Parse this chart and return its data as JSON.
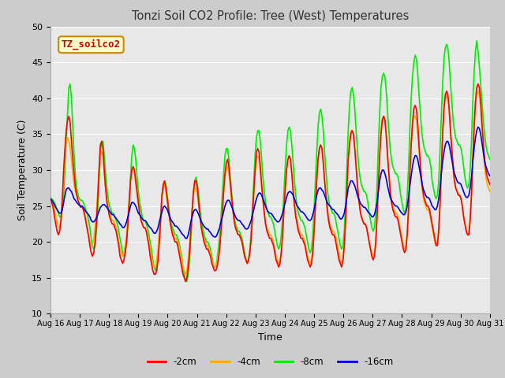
{
  "title": "Tonzi Soil CO2 Profile: Tree (West) Temperatures",
  "xlabel": "Time",
  "ylabel": "Soil Temperature (C)",
  "ylim": [
    10,
    50
  ],
  "yticks": [
    10,
    15,
    20,
    25,
    30,
    35,
    40,
    45,
    50
  ],
  "xtick_labels": [
    "Aug 16",
    "Aug 17",
    "Aug 18",
    "Aug 19",
    "Aug 20",
    "Aug 21",
    "Aug 22",
    "Aug 23",
    "Aug 24",
    "Aug 25",
    "Aug 26",
    "Aug 27",
    "Aug 28",
    "Aug 29",
    "Aug 30",
    "Aug 31"
  ],
  "legend_labels": [
    "-2cm",
    "-4cm",
    "-8cm",
    "-16cm"
  ],
  "legend_colors": [
    "#ff0000",
    "#ffaa00",
    "#00ee00",
    "#0000dd"
  ],
  "background_color": "#cccccc",
  "plot_bg_color": "#e8e8e8",
  "annotation_text": "TZ_soilco2",
  "annotation_bg": "#ffffcc",
  "annotation_border": "#cc8800",
  "annotation_text_color": "#cc0000",
  "grid_color": "#ffffff",
  "series_2cm": [
    26.0,
    25.5,
    24.8,
    23.5,
    22.5,
    21.5,
    21.0,
    21.5,
    23.0,
    26.0,
    30.0,
    33.0,
    35.5,
    37.0,
    37.5,
    36.5,
    34.0,
    31.5,
    29.5,
    27.5,
    26.5,
    25.8,
    25.2,
    24.8,
    25.0,
    24.5,
    23.8,
    22.8,
    21.8,
    20.8,
    19.5,
    18.5,
    18.0,
    18.5,
    20.0,
    22.5,
    26.0,
    30.0,
    33.5,
    34.0,
    33.0,
    30.0,
    27.5,
    25.5,
    24.5,
    23.5,
    23.0,
    22.5,
    22.5,
    22.0,
    21.5,
    20.5,
    19.5,
    18.0,
    17.5,
    17.0,
    17.5,
    18.5,
    20.0,
    22.5,
    25.5,
    28.5,
    30.0,
    30.5,
    30.0,
    28.5,
    27.0,
    25.5,
    24.0,
    23.0,
    22.5,
    22.0,
    22.0,
    21.5,
    20.5,
    19.5,
    18.0,
    17.0,
    16.0,
    15.5,
    15.5,
    16.0,
    17.5,
    20.0,
    23.0,
    26.5,
    28.0,
    28.5,
    27.5,
    26.0,
    24.5,
    23.0,
    22.0,
    21.0,
    20.5,
    20.0,
    20.0,
    19.5,
    18.5,
    17.5,
    16.5,
    15.5,
    15.0,
    14.5,
    15.0,
    16.5,
    18.5,
    21.5,
    24.5,
    27.0,
    28.5,
    28.5,
    27.5,
    25.5,
    23.5,
    22.0,
    21.0,
    20.0,
    19.5,
    19.0,
    19.0,
    18.5,
    18.0,
    17.0,
    16.5,
    16.0,
    16.0,
    16.5,
    17.5,
    19.0,
    21.5,
    24.0,
    27.0,
    29.5,
    31.0,
    31.5,
    30.5,
    28.5,
    26.5,
    24.5,
    23.0,
    22.0,
    21.5,
    21.0,
    21.0,
    20.5,
    20.0,
    19.0,
    18.0,
    17.5,
    17.0,
    17.5,
    18.5,
    20.5,
    23.5,
    27.0,
    30.0,
    32.5,
    33.0,
    32.5,
    30.5,
    28.0,
    26.0,
    24.0,
    22.5,
    21.5,
    21.0,
    20.5,
    20.5,
    20.0,
    19.5,
    18.5,
    17.5,
    17.0,
    16.5,
    17.0,
    18.5,
    21.0,
    24.5,
    27.5,
    30.0,
    31.5,
    32.0,
    31.5,
    29.5,
    27.0,
    25.0,
    23.5,
    22.5,
    21.5,
    21.0,
    20.5,
    20.5,
    20.0,
    19.5,
    18.5,
    17.5,
    17.0,
    16.5,
    17.0,
    18.5,
    21.5,
    25.0,
    28.5,
    31.5,
    33.0,
    33.5,
    33.0,
    31.0,
    28.5,
    26.5,
    24.5,
    23.0,
    22.0,
    21.5,
    21.0,
    21.0,
    20.5,
    19.5,
    18.5,
    17.5,
    17.0,
    16.5,
    17.5,
    19.5,
    23.0,
    27.5,
    31.5,
    33.5,
    35.0,
    35.5,
    35.0,
    33.0,
    30.5,
    28.0,
    26.0,
    24.5,
    23.5,
    23.0,
    22.5,
    22.5,
    22.0,
    21.0,
    20.0,
    19.0,
    18.0,
    17.5,
    18.0,
    20.0,
    23.5,
    28.0,
    32.0,
    35.0,
    37.0,
    37.5,
    37.0,
    35.0,
    32.0,
    29.5,
    27.0,
    25.5,
    24.5,
    24.0,
    23.5,
    23.5,
    23.0,
    22.0,
    21.0,
    20.0,
    19.0,
    18.5,
    19.0,
    21.0,
    24.5,
    29.5,
    33.5,
    36.5,
    38.5,
    39.0,
    38.5,
    36.5,
    33.5,
    31.0,
    28.5,
    27.0,
    26.0,
    25.5,
    25.0,
    25.0,
    24.5,
    23.5,
    22.5,
    21.5,
    20.5,
    19.5,
    19.5,
    21.5,
    25.0,
    30.0,
    35.0,
    38.5,
    40.5,
    41.0,
    40.5,
    38.5,
    35.5,
    33.0,
    30.5,
    28.5,
    27.5,
    27.0,
    26.5,
    26.5,
    26.0,
    25.0,
    23.5,
    22.5,
    21.5,
    21.0,
    21.0,
    23.0,
    26.5,
    31.5,
    36.0,
    39.5,
    41.5,
    42.0,
    41.5,
    39.5,
    36.5,
    34.0,
    31.5,
    30.0,
    29.0,
    28.5,
    28.0
  ],
  "series_4cm": [
    26.0,
    25.8,
    25.3,
    24.5,
    23.5,
    22.8,
    22.0,
    22.0,
    23.0,
    25.5,
    28.5,
    32.0,
    34.0,
    34.5,
    34.0,
    33.0,
    31.5,
    29.5,
    28.0,
    27.0,
    26.5,
    25.8,
    25.3,
    25.0,
    25.0,
    24.5,
    24.0,
    23.0,
    22.0,
    21.0,
    20.0,
    19.5,
    19.5,
    20.5,
    22.0,
    24.0,
    27.0,
    30.0,
    32.0,
    32.5,
    32.0,
    29.5,
    27.5,
    26.0,
    24.8,
    24.0,
    23.5,
    23.0,
    23.0,
    22.5,
    22.0,
    21.0,
    20.0,
    19.0,
    18.5,
    18.0,
    18.5,
    19.5,
    21.0,
    23.5,
    26.0,
    28.5,
    30.0,
    30.0,
    29.5,
    28.0,
    26.5,
    25.0,
    24.0,
    23.0,
    22.5,
    22.0,
    22.0,
    21.5,
    21.0,
    20.0,
    19.0,
    18.0,
    17.0,
    16.5,
    16.5,
    17.5,
    19.0,
    21.5,
    24.0,
    26.5,
    27.5,
    28.0,
    27.0,
    25.5,
    24.0,
    23.0,
    22.0,
    21.5,
    21.0,
    20.5,
    20.5,
    20.0,
    19.5,
    18.5,
    17.5,
    16.5,
    16.0,
    15.5,
    16.0,
    17.5,
    19.5,
    22.0,
    24.5,
    26.5,
    27.5,
    27.5,
    26.5,
    25.0,
    23.5,
    22.0,
    21.0,
    20.5,
    20.0,
    19.5,
    19.5,
    19.0,
    18.5,
    17.5,
    17.0,
    16.5,
    16.5,
    17.0,
    18.0,
    19.5,
    22.0,
    24.5,
    27.0,
    29.0,
    30.0,
    30.5,
    29.5,
    28.0,
    26.0,
    24.5,
    23.0,
    22.0,
    21.5,
    21.0,
    21.0,
    20.5,
    20.0,
    19.0,
    18.0,
    17.5,
    17.0,
    17.5,
    18.5,
    20.5,
    23.5,
    26.5,
    29.5,
    31.5,
    32.0,
    31.5,
    29.5,
    27.5,
    25.5,
    24.0,
    22.5,
    22.0,
    21.5,
    21.0,
    21.0,
    20.5,
    20.0,
    19.0,
    18.0,
    17.5,
    17.0,
    17.5,
    19.0,
    21.5,
    24.5,
    27.5,
    30.0,
    31.5,
    32.0,
    31.5,
    29.5,
    27.5,
    25.5,
    24.0,
    23.0,
    22.0,
    21.5,
    21.0,
    21.0,
    20.5,
    20.0,
    19.0,
    18.0,
    17.5,
    17.0,
    17.5,
    19.0,
    22.0,
    25.5,
    29.0,
    31.5,
    33.0,
    33.5,
    33.0,
    31.0,
    28.5,
    26.5,
    25.0,
    23.5,
    22.5,
    22.0,
    21.5,
    21.5,
    21.0,
    20.5,
    19.5,
    18.5,
    17.5,
    17.0,
    17.5,
    19.5,
    23.0,
    27.5,
    31.5,
    34.0,
    35.5,
    35.5,
    35.0,
    33.0,
    30.5,
    28.0,
    26.0,
    24.5,
    23.5,
    23.0,
    22.5,
    22.5,
    22.0,
    21.0,
    20.0,
    19.0,
    18.5,
    18.0,
    18.5,
    20.0,
    23.5,
    28.0,
    32.5,
    35.5,
    37.0,
    37.5,
    36.5,
    34.5,
    32.0,
    29.5,
    27.5,
    26.0,
    25.0,
    24.5,
    24.0,
    24.0,
    23.5,
    22.5,
    21.5,
    20.5,
    19.5,
    19.0,
    19.5,
    21.5,
    25.0,
    29.5,
    33.5,
    36.0,
    37.5,
    37.5,
    37.0,
    35.0,
    32.5,
    30.0,
    28.0,
    26.5,
    25.5,
    25.0,
    24.5,
    24.5,
    24.0,
    23.0,
    22.0,
    21.0,
    20.0,
    19.5,
    20.0,
    22.0,
    25.5,
    30.5,
    35.5,
    38.5,
    40.0,
    40.5,
    40.0,
    38.0,
    35.0,
    32.5,
    30.0,
    28.5,
    27.5,
    27.0,
    26.5,
    26.5,
    26.0,
    25.0,
    23.5,
    22.5,
    21.5,
    21.0,
    21.5,
    23.5,
    27.0,
    31.5,
    36.0,
    39.0,
    40.5,
    41.0,
    40.5,
    38.5,
    35.5,
    33.0,
    30.5,
    29.0,
    28.0,
    27.5,
    27.0
  ],
  "series_8cm": [
    26.0,
    26.0,
    25.8,
    25.5,
    25.0,
    24.5,
    24.0,
    23.5,
    23.5,
    24.5,
    26.5,
    30.0,
    34.0,
    38.0,
    41.5,
    42.0,
    40.0,
    36.0,
    32.0,
    29.0,
    27.5,
    26.5,
    26.0,
    25.8,
    25.8,
    25.5,
    25.0,
    24.5,
    24.0,
    23.0,
    22.0,
    20.5,
    19.5,
    19.0,
    19.5,
    21.5,
    24.5,
    28.5,
    32.5,
    34.0,
    34.0,
    32.0,
    29.5,
    27.5,
    26.0,
    25.0,
    24.5,
    24.0,
    24.0,
    23.5,
    23.0,
    22.5,
    21.5,
    20.5,
    19.5,
    18.5,
    18.0,
    18.5,
    20.0,
    22.5,
    25.5,
    29.0,
    32.0,
    33.5,
    33.0,
    31.5,
    29.0,
    27.0,
    25.5,
    24.5,
    23.5,
    23.0,
    23.0,
    22.5,
    22.0,
    21.0,
    20.0,
    19.0,
    17.5,
    16.5,
    16.0,
    16.5,
    18.0,
    20.5,
    23.5,
    26.5,
    28.0,
    28.5,
    28.0,
    26.5,
    25.0,
    23.5,
    22.5,
    22.0,
    21.5,
    21.0,
    21.0,
    20.5,
    20.0,
    19.0,
    18.0,
    16.5,
    15.5,
    14.5,
    14.5,
    15.5,
    17.5,
    20.5,
    24.0,
    27.0,
    28.5,
    29.0,
    28.0,
    26.5,
    24.5,
    23.0,
    22.0,
    21.0,
    20.5,
    20.0,
    20.0,
    19.5,
    19.0,
    18.0,
    17.0,
    16.5,
    16.5,
    17.5,
    19.0,
    21.0,
    23.5,
    26.5,
    29.5,
    32.0,
    33.0,
    33.0,
    31.5,
    29.0,
    27.0,
    25.0,
    23.5,
    22.5,
    22.0,
    21.5,
    21.5,
    21.0,
    20.5,
    19.5,
    18.5,
    17.5,
    17.0,
    17.5,
    19.0,
    21.5,
    25.0,
    28.5,
    32.0,
    34.5,
    35.5,
    35.5,
    34.0,
    31.5,
    29.0,
    27.0,
    25.5,
    24.5,
    24.0,
    23.5,
    23.5,
    23.0,
    22.5,
    21.5,
    20.5,
    19.5,
    19.0,
    19.5,
    21.0,
    23.5,
    27.0,
    30.5,
    33.5,
    35.5,
    36.0,
    35.5,
    33.5,
    31.0,
    28.5,
    26.5,
    25.0,
    24.0,
    23.5,
    23.0,
    23.0,
    22.5,
    22.0,
    21.0,
    20.0,
    19.0,
    18.5,
    19.0,
    21.0,
    24.5,
    28.5,
    32.5,
    36.0,
    38.0,
    38.5,
    37.5,
    35.5,
    32.5,
    30.0,
    27.5,
    26.0,
    25.0,
    24.5,
    24.0,
    24.0,
    23.5,
    22.5,
    21.5,
    20.5,
    19.5,
    19.0,
    19.5,
    21.5,
    25.5,
    30.5,
    35.5,
    39.0,
    41.0,
    41.5,
    40.5,
    38.5,
    35.5,
    33.0,
    30.5,
    29.0,
    28.0,
    27.5,
    27.0,
    27.0,
    26.5,
    25.5,
    24.0,
    23.0,
    22.0,
    21.5,
    22.0,
    24.0,
    28.0,
    33.5,
    38.0,
    41.5,
    43.0,
    43.5,
    43.0,
    41.0,
    38.0,
    35.5,
    33.0,
    31.5,
    30.5,
    30.0,
    29.5,
    29.5,
    29.0,
    28.0,
    26.5,
    25.5,
    24.5,
    24.0,
    24.5,
    26.5,
    30.5,
    35.5,
    40.0,
    43.0,
    45.0,
    46.0,
    45.5,
    43.5,
    40.5,
    38.0,
    35.5,
    34.0,
    33.0,
    32.5,
    32.0,
    32.0,
    31.5,
    30.5,
    28.5,
    27.5,
    26.5,
    26.0,
    26.5,
    28.5,
    32.5,
    37.5,
    42.0,
    45.5,
    47.0,
    47.5,
    47.0,
    45.0,
    42.0,
    39.5,
    37.0,
    35.5,
    34.5,
    34.0,
    33.5,
    33.5,
    33.0,
    32.0,
    30.5,
    29.0,
    28.0,
    27.5,
    28.0,
    30.0,
    34.0,
    39.5,
    43.5,
    46.5,
    48.0,
    46.5,
    44.5,
    42.0,
    39.5,
    37.0,
    35.0,
    33.5,
    32.5,
    32.0,
    31.5
  ],
  "series_16cm": [
    26.0,
    25.8,
    25.5,
    25.2,
    24.8,
    24.5,
    24.2,
    24.0,
    24.0,
    24.5,
    25.5,
    26.5,
    27.3,
    27.5,
    27.5,
    27.2,
    27.0,
    26.5,
    26.0,
    25.8,
    25.5,
    25.3,
    25.1,
    25.0,
    25.0,
    24.8,
    24.5,
    24.2,
    24.0,
    23.8,
    23.5,
    23.0,
    22.8,
    22.8,
    23.0,
    23.3,
    23.8,
    24.3,
    24.8,
    25.0,
    25.2,
    25.2,
    25.0,
    24.8,
    24.5,
    24.3,
    24.0,
    23.8,
    23.8,
    23.5,
    23.3,
    23.0,
    22.8,
    22.5,
    22.3,
    22.0,
    22.0,
    22.3,
    22.8,
    23.5,
    24.2,
    25.0,
    25.5,
    25.5,
    25.3,
    25.0,
    24.5,
    24.0,
    23.8,
    23.5,
    23.2,
    23.0,
    23.0,
    22.8,
    22.5,
    22.2,
    22.0,
    21.8,
    21.5,
    21.2,
    21.2,
    21.5,
    22.0,
    22.8,
    23.5,
    24.2,
    24.8,
    25.0,
    24.8,
    24.5,
    24.0,
    23.5,
    23.0,
    22.8,
    22.5,
    22.2,
    22.2,
    22.0,
    21.8,
    21.5,
    21.2,
    21.0,
    20.8,
    20.5,
    20.5,
    21.0,
    21.8,
    22.8,
    23.5,
    24.2,
    24.5,
    24.5,
    24.2,
    23.8,
    23.3,
    22.8,
    22.5,
    22.2,
    22.0,
    21.8,
    21.8,
    21.5,
    21.3,
    21.0,
    20.8,
    20.7,
    20.7,
    21.0,
    21.5,
    22.0,
    22.8,
    23.5,
    24.2,
    25.0,
    25.5,
    25.8,
    25.8,
    25.5,
    25.0,
    24.5,
    24.0,
    23.5,
    23.2,
    23.0,
    23.0,
    22.8,
    22.5,
    22.3,
    22.0,
    21.8,
    21.8,
    22.0,
    22.5,
    23.0,
    23.8,
    24.5,
    25.3,
    26.0,
    26.5,
    26.8,
    26.8,
    26.5,
    26.0,
    25.5,
    25.0,
    24.5,
    24.2,
    24.0,
    24.0,
    23.8,
    23.5,
    23.2,
    23.0,
    22.8,
    22.8,
    23.0,
    23.5,
    24.0,
    24.8,
    25.5,
    26.2,
    26.8,
    27.0,
    27.0,
    26.8,
    26.5,
    26.0,
    25.5,
    25.0,
    24.8,
    24.5,
    24.2,
    24.2,
    24.0,
    23.8,
    23.5,
    23.2,
    23.0,
    23.0,
    23.2,
    23.8,
    24.5,
    25.5,
    26.5,
    27.2,
    27.5,
    27.5,
    27.2,
    27.0,
    26.5,
    26.0,
    25.5,
    25.2,
    25.0,
    24.8,
    24.5,
    24.5,
    24.2,
    24.0,
    23.8,
    23.5,
    23.2,
    23.2,
    23.5,
    24.0,
    25.0,
    26.2,
    27.5,
    28.0,
    28.5,
    28.5,
    28.2,
    27.8,
    27.2,
    26.5,
    26.0,
    25.5,
    25.2,
    25.0,
    24.8,
    24.8,
    24.5,
    24.2,
    24.0,
    23.8,
    23.5,
    23.5,
    23.8,
    24.5,
    25.5,
    27.0,
    28.5,
    29.5,
    30.0,
    30.0,
    29.5,
    28.8,
    27.8,
    27.0,
    26.2,
    25.8,
    25.5,
    25.2,
    25.0,
    25.0,
    24.8,
    24.5,
    24.2,
    24.0,
    23.8,
    23.8,
    24.2,
    25.0,
    26.2,
    27.8,
    29.2,
    30.5,
    31.5,
    32.0,
    32.0,
    31.5,
    30.5,
    29.5,
    28.5,
    27.5,
    27.0,
    26.5,
    26.2,
    26.2,
    26.0,
    25.5,
    25.0,
    24.8,
    24.5,
    24.5,
    25.0,
    26.0,
    27.5,
    29.5,
    31.2,
    32.5,
    33.5,
    34.0,
    34.0,
    33.5,
    32.5,
    31.5,
    30.5,
    29.5,
    29.0,
    28.5,
    28.2,
    28.2,
    28.0,
    27.5,
    27.0,
    26.5,
    26.2,
    26.2,
    26.5,
    27.5,
    29.0,
    31.2,
    33.0,
    34.5,
    35.5,
    36.0,
    35.8,
    35.0,
    33.8,
    32.5,
    31.2,
    30.5,
    30.0,
    29.5,
    29.2
  ]
}
